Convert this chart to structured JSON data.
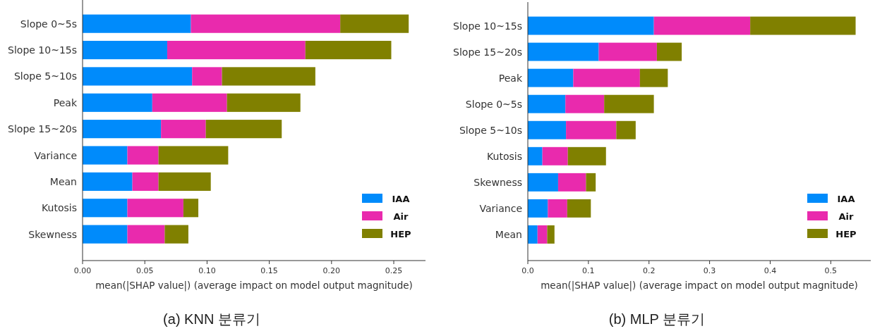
{
  "chart_data": [
    {
      "type": "bar",
      "orientation": "horizontal",
      "stacked": true,
      "xlabel": "mean(|SHAP value|) (average impact on model output magnitude)",
      "annotations": [
        "(a) KNN 분류기"
      ],
      "categories": [
        "Slope 0~5s",
        "Slope 10~15s",
        "Slope 5~10s",
        "Peak",
        "Slope 15~20s",
        "Variance",
        "Mean",
        "Kutosis",
        "Skewness"
      ],
      "series": [
        {
          "name": "IAA",
          "color": "#008bfb",
          "values": [
            0.087,
            0.068,
            0.088,
            0.056,
            0.063,
            0.036,
            0.04,
            0.036,
            0.036
          ]
        },
        {
          "name": "Air",
          "color": "#e92aad",
          "values": [
            0.12,
            0.111,
            0.024,
            0.06,
            0.036,
            0.025,
            0.021,
            0.045,
            0.03
          ]
        },
        {
          "name": "HEP",
          "color": "#808000",
          "values": [
            0.055,
            0.069,
            0.075,
            0.059,
            0.061,
            0.056,
            0.042,
            0.012,
            0.019
          ]
        }
      ],
      "xlim": [
        0,
        0.2755
      ],
      "xticks": [
        {
          "value": 0,
          "label": "0.00"
        },
        {
          "value": 0.05,
          "label": "0.05"
        },
        {
          "value": 0.1,
          "label": "0.10"
        },
        {
          "value": 0.15,
          "label": "0.15"
        },
        {
          "value": 0.2,
          "label": "0.20"
        },
        {
          "value": 0.25,
          "label": "0.25"
        }
      ],
      "legend": "bottom right",
      "grid": false
    },
    {
      "type": "bar",
      "orientation": "horizontal",
      "stacked": true,
      "xlabel": "mean(|SHAP value|) (average impact on model output magnitude)",
      "annotations": [
        "(b) MLP 분류기"
      ],
      "categories": [
        "Slope 10~15s",
        "Slope 15~20s",
        "Peak",
        "Slope 0~5s",
        "Slope 5~10s",
        "Kutosis",
        "Skewness",
        "Variance",
        "Mean"
      ],
      "series": [
        {
          "name": "IAA",
          "color": "#008bfb",
          "values": [
            0.208,
            0.117,
            0.075,
            0.062,
            0.063,
            0.024,
            0.05,
            0.033,
            0.016
          ]
        },
        {
          "name": "Air",
          "color": "#e92aad",
          "values": [
            0.159,
            0.096,
            0.11,
            0.064,
            0.083,
            0.042,
            0.046,
            0.032,
            0.016
          ]
        },
        {
          "name": "HEP",
          "color": "#808000",
          "values": [
            0.174,
            0.041,
            0.046,
            0.082,
            0.032,
            0.063,
            0.016,
            0.039,
            0.012
          ]
        }
      ],
      "xlim": [
        0,
        0.566
      ],
      "xticks": [
        {
          "value": 0,
          "label": "0.0"
        },
        {
          "value": 0.1,
          "label": "0.1"
        },
        {
          "value": 0.2,
          "label": "0.2"
        },
        {
          "value": 0.3,
          "label": "0.3"
        },
        {
          "value": 0.4,
          "label": "0.4"
        },
        {
          "value": 0.5,
          "label": "0.5"
        }
      ],
      "legend": "bottom right",
      "grid": false
    }
  ]
}
